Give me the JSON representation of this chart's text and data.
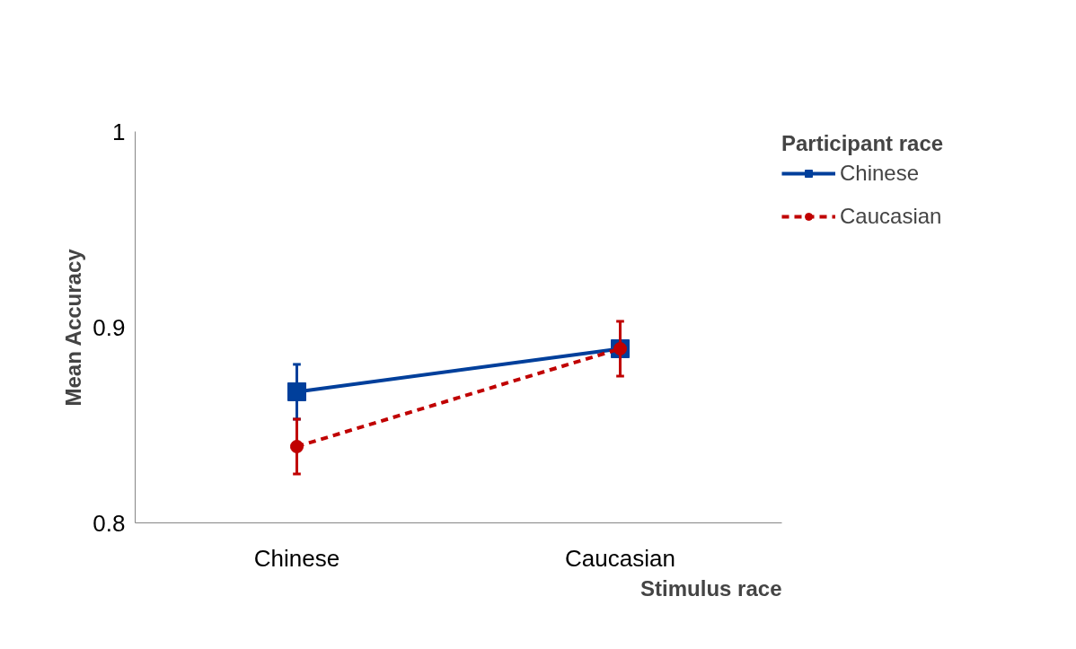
{
  "chart_data": {
    "type": "line",
    "xlabel": "Stimulus race",
    "ylabel": "Mean Accuracy",
    "legend_title": "Participant race",
    "categories": [
      "Chinese",
      "Caucasian"
    ],
    "series": [
      {
        "name": "Chinese",
        "color": "#003f9b",
        "values": [
          0.867,
          0.889
        ],
        "errors": [
          0.014,
          null
        ],
        "marker": "square",
        "line_style": "solid"
      },
      {
        "name": "Caucasian",
        "color": "#c00000",
        "values": [
          0.839,
          0.889
        ],
        "errors": [
          0.014,
          0.014
        ],
        "marker": "circle",
        "line_style": "dashed"
      }
    ],
    "ylim": [
      0.8,
      1
    ],
    "yticks": [
      0.8,
      0.9,
      1
    ],
    "grid": false,
    "legend": "top right"
  }
}
